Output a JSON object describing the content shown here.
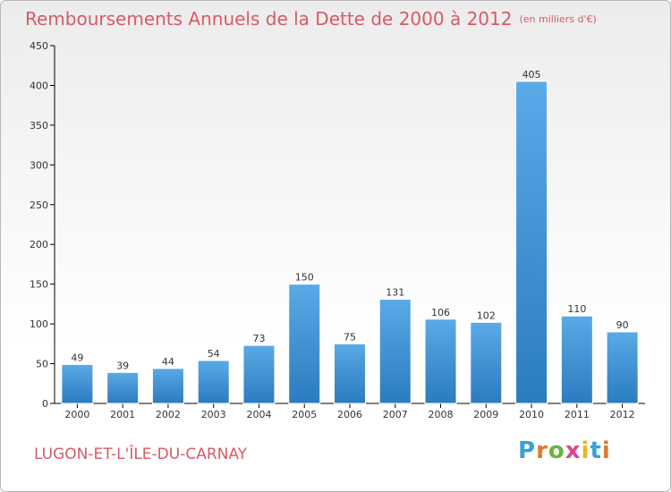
{
  "header": {
    "title": "Remboursements Annuels de la Dette de 2000 à 2012",
    "subtitle": "(en milliers d'€)"
  },
  "footer": {
    "commune": "LUGON-ET-L'ÎLE-DU-CARNAY",
    "logo_text": "Proxiti"
  },
  "colors": {
    "title": "#d85a66",
    "bar_top": "#5aaae6",
    "bar_bottom": "#2b7bc0",
    "axis": "#000000"
  },
  "chart_data": {
    "type": "bar",
    "title": "Remboursements Annuels de la Dette de 2000 à 2012",
    "xlabel": "",
    "ylabel": "",
    "categories": [
      "2000",
      "2001",
      "2002",
      "2003",
      "2004",
      "2005",
      "2006",
      "2007",
      "2008",
      "2009",
      "2010",
      "2011",
      "2012"
    ],
    "values": [
      49,
      39,
      44,
      54,
      73,
      150,
      75,
      131,
      106,
      102,
      405,
      110,
      90
    ],
    "ylim": [
      0,
      450
    ],
    "yticks": [
      0,
      50,
      100,
      150,
      200,
      250,
      300,
      350,
      400,
      450
    ],
    "grid": false,
    "legend": "none"
  }
}
